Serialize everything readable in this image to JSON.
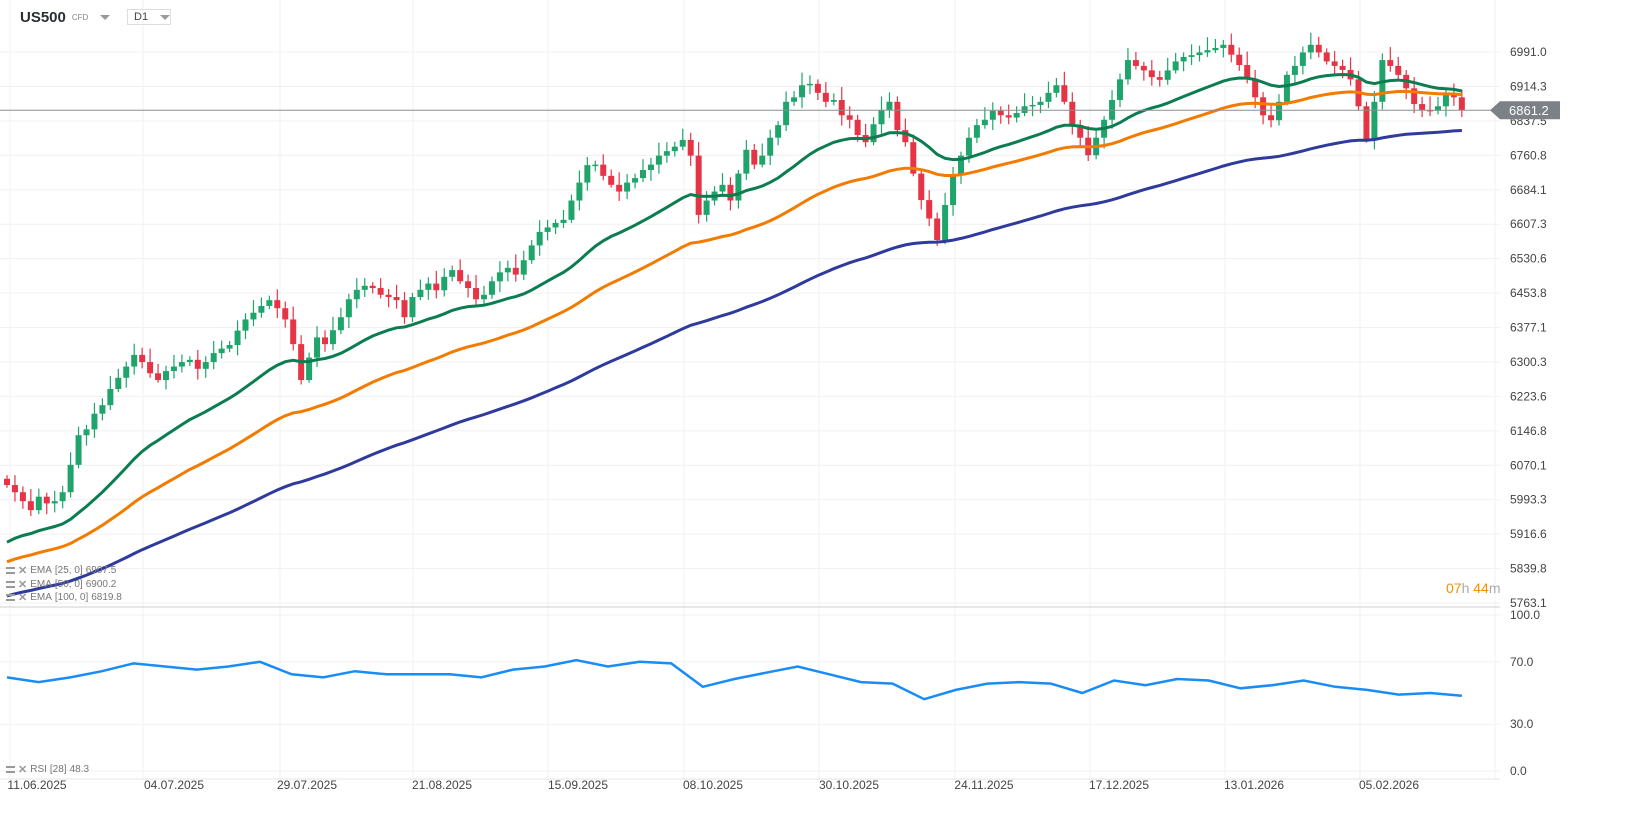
{
  "header": {
    "symbol": "US500",
    "instrument_type": "CFD",
    "timeframe": "D1"
  },
  "colors": {
    "up": "#1fa56c",
    "down": "#e63447",
    "ema25": "#0b7d50",
    "ema50": "#f27b00",
    "ema100": "#2f3b9c",
    "rsi": "#1a8cf5",
    "price_tag": "#7b8186"
  },
  "legend": [
    {
      "label": "EMA",
      "params": "[25, 0]",
      "value": "6907.5"
    },
    {
      "label": "EMA",
      "params": "[50, 0]",
      "value": "6900.2"
    },
    {
      "label": "EMA",
      "params": "[100, 0]",
      "value": "6819.8"
    }
  ],
  "rsi_legend": {
    "label": "RSI",
    "params": "[28]",
    "value": "48.3"
  },
  "countdown": {
    "hours": "07",
    "h": "h",
    "minutes": "44",
    "m": "m"
  },
  "chart_data": {
    "type": "candlestick",
    "current_price": "6861.2",
    "y_ticks": [
      "6991.0",
      "6914.3",
      "6837.5",
      "6760.8",
      "6684.1",
      "6607.3",
      "6530.6",
      "6453.8",
      "6377.1",
      "6300.3",
      "6223.6",
      "6146.8",
      "6070.1",
      "5993.3",
      "5916.6",
      "5839.8",
      "5763.1"
    ],
    "ylim": [
      5763.1,
      6991.0
    ],
    "x_ticks": [
      "11.06.2025",
      "04.07.2025",
      "29.07.2025",
      "21.08.2025",
      "15.09.2025",
      "08.10.2025",
      "30.10.2025",
      "24.11.2025",
      "17.12.2025",
      "13.01.2026",
      "05.02.2026"
    ],
    "first_open": 6040,
    "close": [
      6026,
      6010,
      5990,
      5970,
      6000,
      5985,
      5990,
      6010,
      6071,
      6137,
      6150,
      6185,
      6204,
      6240,
      6265,
      6290,
      6316,
      6300,
      6275,
      6260,
      6280,
      6290,
      6300,
      6305,
      6285,
      6300,
      6320,
      6330,
      6338,
      6370,
      6395,
      6410,
      6425,
      6438,
      6420,
      6395,
      6340,
      6260,
      6310,
      6355,
      6340,
      6371,
      6400,
      6440,
      6461,
      6470,
      6465,
      6450,
      6445,
      6438,
      6400,
      6445,
      6461,
      6475,
      6460,
      6490,
      6505,
      6480,
      6465,
      6440,
      6450,
      6480,
      6500,
      6510,
      6495,
      6527,
      6560,
      6590,
      6600,
      6610,
      6617,
      6660,
      6700,
      6739,
      6740,
      6715,
      6695,
      6680,
      6700,
      6710,
      6728,
      6740,
      6760,
      6770,
      6780,
      6795,
      6760,
      6628,
      6660,
      6680,
      6695,
      6660,
      6720,
      6773,
      6740,
      6760,
      6800,
      6828,
      6880,
      6890,
      6917,
      6920,
      6900,
      6880,
      6884,
      6850,
      6840,
      6806,
      6790,
      6830,
      6862,
      6880,
      6817,
      6790,
      6720,
      6661,
      6620,
      6572,
      6650,
      6717,
      6760,
      6800,
      6828,
      6840,
      6860,
      6850,
      6845,
      6855,
      6870,
      6873,
      6880,
      6900,
      6917,
      6880,
      6828,
      6800,
      6761,
      6800,
      6840,
      6884,
      6930,
      6973,
      6960,
      6950,
      6935,
      6929,
      6950,
      6970,
      6980,
      6984,
      6990,
      6995,
      7000,
      7007,
      6985,
      6962,
      6930,
      6890,
      6850,
      6839,
      6880,
      6940,
      6960,
      6990,
      7007,
      6990,
      6970,
      6960,
      6951,
      6930,
      6870,
      6795,
      6880,
      6973,
      6960,
      6940,
      6910,
      6875,
      6862,
      6860,
      6870,
      6895,
      6890,
      6861
    ],
    "ema": [
      {
        "period": 25,
        "start": 5888
      },
      {
        "period": 50,
        "start": 5848
      },
      {
        "period": 100,
        "start": 5774
      }
    ],
    "rsi": {
      "period": 28,
      "ylim": [
        0,
        100
      ],
      "y_ticks": [
        "100.0",
        "70.0",
        "30.0",
        "0.0"
      ],
      "values": [
        60,
        57,
        60,
        64,
        69,
        67,
        65,
        67,
        70,
        62,
        60,
        64,
        62,
        62,
        62,
        60,
        65,
        67,
        71,
        67,
        70,
        69,
        54,
        59,
        63,
        67,
        62,
        57,
        56,
        46,
        52,
        56,
        57,
        56,
        50,
        58,
        55,
        59,
        58,
        53,
        55,
        58,
        54,
        52,
        49,
        50,
        48.3
      ]
    }
  }
}
